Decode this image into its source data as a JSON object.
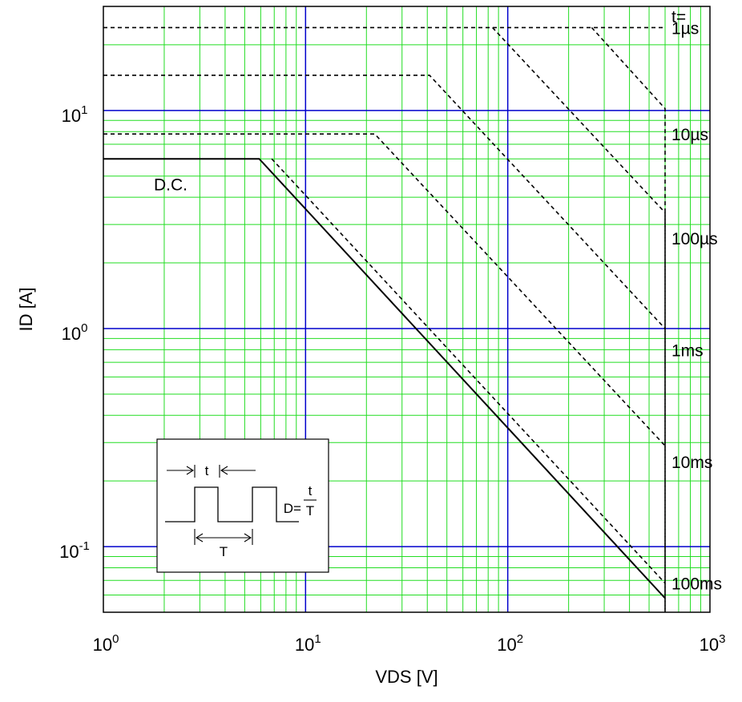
{
  "chart_data": {
    "type": "line",
    "title": "",
    "xlabel": "VDS [V]",
    "ylabel": "ID [A]",
    "x_scale": "log",
    "y_scale": "log",
    "xlim": [
      1,
      1000
    ],
    "ylim": [
      0.05,
      30
    ],
    "grid": true,
    "x_ticks": [
      {
        "base": "10",
        "exp": "0",
        "value": 1
      },
      {
        "base": "10",
        "exp": "1",
        "value": 10
      },
      {
        "base": "10",
        "exp": "2",
        "value": 100
      },
      {
        "base": "10",
        "exp": "3",
        "value": 1000
      }
    ],
    "y_ticks": [
      {
        "base": "10",
        "exp": "-1",
        "value": 0.1
      },
      {
        "base": "10",
        "exp": "0",
        "value": 1
      },
      {
        "base": "10",
        "exp": "1",
        "value": 10
      }
    ],
    "series_label_prefix": "t=",
    "series": [
      {
        "name": "1µs",
        "style": "dashed",
        "label_at": 24,
        "points": [
          [
            1,
            24
          ],
          [
            600,
            24
          ]
        ]
      },
      {
        "name": "10µs",
        "style": "dashed",
        "label_at": 7.8,
        "points": [
          [
            84,
            24
          ],
          [
            600,
            3.4
          ],
          [
            600,
            0.05
          ]
        ]
      },
      {
        "name": "100µs",
        "style": "dashed",
        "label_at": 2.6,
        "points": [
          [
            1,
            14.5
          ],
          [
            41,
            14.5
          ],
          [
            600,
            1.0
          ]
        ]
      },
      {
        "name": "1ms",
        "style": "dashed",
        "label_at": 0.8,
        "points": [
          [
            1,
            7.8
          ],
          [
            22,
            7.8
          ],
          [
            600,
            0.29
          ]
        ]
      },
      {
        "name": "10ms",
        "style": "dashed",
        "label_at": 0.245,
        "points": [
          [
            6.8,
            6.0
          ],
          [
            600,
            0.068
          ]
        ]
      },
      {
        "name": "100ms",
        "style": "dashed",
        "label_at": 0.068,
        "points": [
          [
            260,
            24
          ],
          [
            600,
            10.2
          ],
          [
            600,
            0.05
          ]
        ]
      },
      {
        "name": "D.C.",
        "style": "solid",
        "label_at": null,
        "points": [
          [
            1,
            6.0
          ],
          [
            5.9,
            6.0
          ],
          [
            600,
            0.058
          ]
        ]
      }
    ],
    "annotations": [
      "D.C."
    ],
    "inset": {
      "t_label": "t",
      "T_label": "T",
      "formula_lhs": "D=",
      "formula_num": "t",
      "formula_den": "T"
    }
  },
  "colors": {
    "major_grid": "#0000cc",
    "minor_grid": "#22dd22",
    "curves": "#000000",
    "background": "#ffffff"
  }
}
